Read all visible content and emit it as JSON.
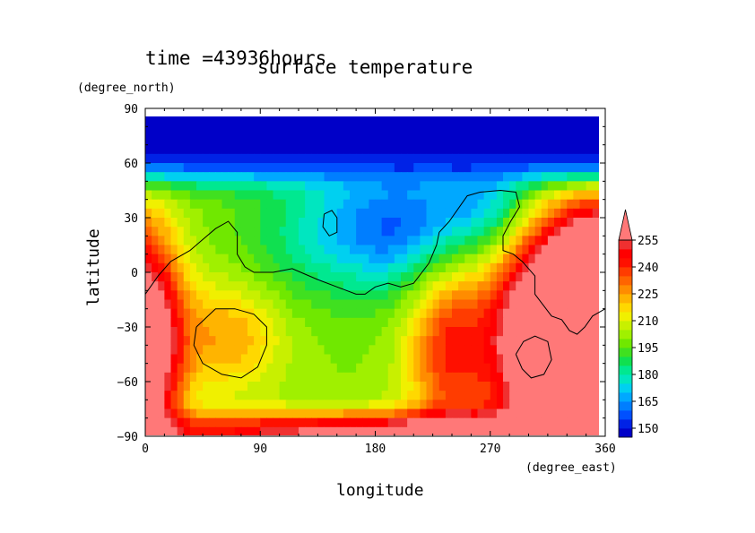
{
  "chart_data": {
    "type": "heatmap",
    "title": "surface temperature",
    "subtitle": "time =43936hours",
    "xlabel": "longitude",
    "ylabel": "latitude",
    "x_units": "(degree_east)",
    "y_units": "(degree_north)",
    "xlim": [
      0,
      360
    ],
    "ylim": [
      -90,
      90
    ],
    "x_ticks": [
      0,
      90,
      180,
      270,
      360
    ],
    "y_ticks": [
      90,
      60,
      30,
      0,
      -30,
      -60,
      -90
    ],
    "y_tick_labels": [
      "90",
      "60",
      "30",
      "0",
      "−30",
      "−60",
      "−90"
    ],
    "colorbar": {
      "levels": [
        145,
        150,
        155,
        160,
        165,
        170,
        175,
        180,
        185,
        190,
        195,
        200,
        205,
        210,
        215,
        220,
        225,
        230,
        235,
        240,
        245,
        250,
        255,
        260
      ],
      "labels": [
        150,
        165,
        180,
        195,
        210,
        225,
        240,
        255
      ],
      "colors": [
        "#0000c8",
        "#0022e6",
        "#0050ff",
        "#007eff",
        "#00a8ff",
        "#00d0f0",
        "#00e6c0",
        "#00e890",
        "#10e050",
        "#40e020",
        "#70e800",
        "#a0f000",
        "#c8f000",
        "#f0f000",
        "#ffd800",
        "#ffb400",
        "#ff8c00",
        "#ff6400",
        "#ff3c00",
        "#ff1000",
        "#ff0000",
        "#f03030",
        "#ff7878"
      ],
      "extend": "max"
    },
    "field_description": "Cold (~145-150) north of about 55N with a dip toward 20N near 180-230E; warm (>255) over 300-360E south of 20N, near 0-30E and along the southern edge; green 190-210 band covers most of the mid/southern latitudes 60-230E."
  }
}
